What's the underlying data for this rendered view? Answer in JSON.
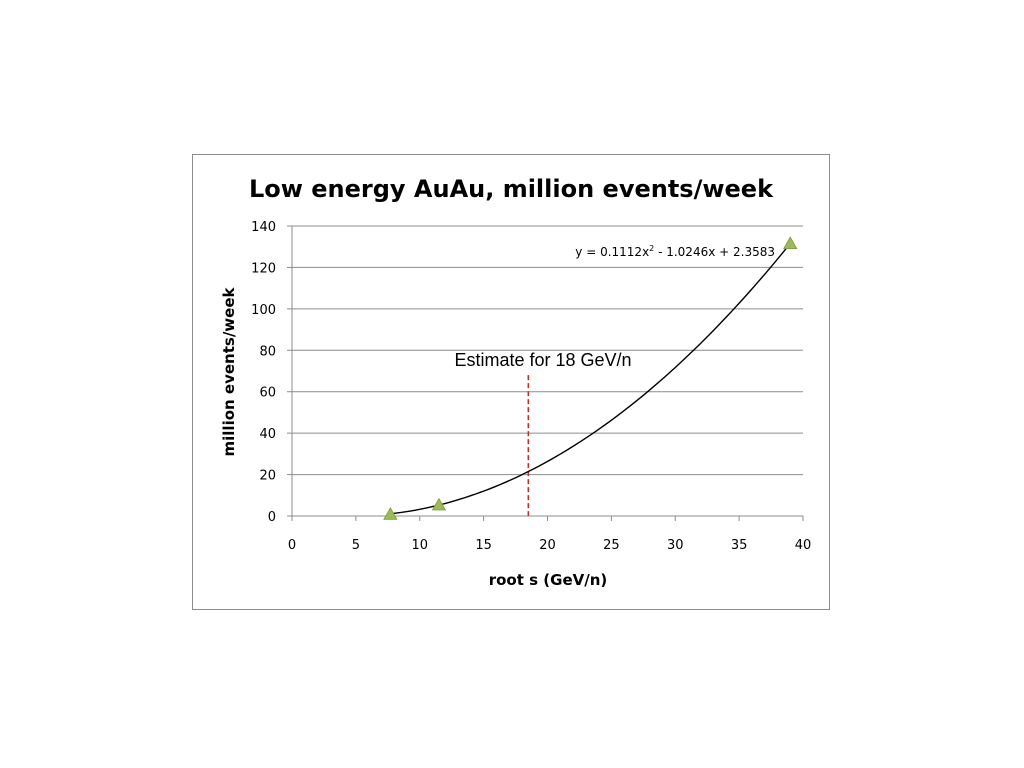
{
  "chart_data": {
    "type": "scatter",
    "title": "Low energy AuAu, million events/week",
    "xlabel": "root s (GeV/n)",
    "ylabel": "million events/week",
    "xlim": [
      0,
      40
    ],
    "ylim": [
      0,
      140
    ],
    "x_ticks": [
      "0",
      "5",
      "10",
      "15",
      "20",
      "25",
      "30",
      "35",
      "40"
    ],
    "y_ticks": [
      "0",
      "20",
      "40",
      "60",
      "80",
      "100",
      "120",
      "140"
    ],
    "grid": "horizontal",
    "series": [
      {
        "marker": "triangle",
        "color": "#9bbb59",
        "points": [
          {
            "x": 7.7,
            "y": 0.8
          },
          {
            "x": 11.5,
            "y": 5.3
          },
          {
            "x": 39,
            "y": 131.5
          }
        ]
      }
    ],
    "trendline": {
      "type": "polynomial",
      "a": 0.1112,
      "b": -1.0246,
      "c": 2.3583,
      "x_range": [
        7.7,
        39
      ],
      "color": "#000000",
      "equation_label": "y = 0.1112x",
      "equation_sup": "2",
      "equation_rest": " - 1.0246x + 2.3583"
    },
    "annotation": {
      "text": "Estimate for 18 GeV/n",
      "line_x": 18.5,
      "line_y_top": 68,
      "line_y_bottom": 0,
      "color": "#c0302b"
    }
  }
}
